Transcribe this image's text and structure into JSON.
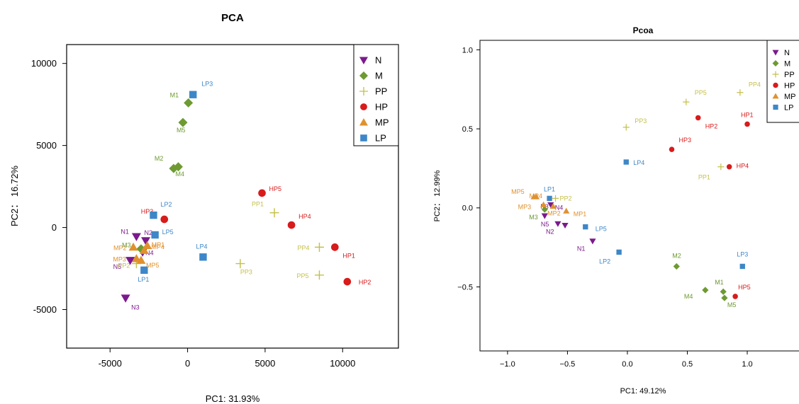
{
  "colors": {
    "N": "#7B1A8C",
    "M": "#6E9A32",
    "PP": "#C4C04A",
    "HP": "#D81B1B",
    "MP": "#E0912E",
    "LP": "#3D87C8"
  },
  "chart_data": [
    {
      "type": "scatter",
      "title": "PCA",
      "xlabel": "PC1: 31.93%",
      "ylabel": "PC2： 16.72%",
      "xlim": [
        -7800,
        13600
      ],
      "ylim": [
        -7350,
        11150
      ],
      "xticks": [
        -5000,
        0,
        5000,
        10000
      ],
      "yticks": [
        -5000,
        0,
        5000,
        10000
      ],
      "xticklabels": [
        "-5000",
        "0",
        "5000",
        "10000"
      ],
      "yticklabels": [
        "-5000",
        "0",
        "5000",
        "10000"
      ],
      "grid": false,
      "legend": {
        "placement": "top-right",
        "entries": [
          "N",
          "M",
          "PP",
          "HP",
          "MP",
          "LP"
        ]
      },
      "series": [
        {
          "name": "N",
          "marker": "triangle-down",
          "points": [
            {
              "label": "N1",
              "x": -3300,
              "y": -550
            },
            {
              "label": "N2",
              "x": -2700,
              "y": -800
            },
            {
              "label": "N3",
              "x": -4000,
              "y": -4300
            },
            {
              "label": "N4",
              "x": -2900,
              "y": -1500
            },
            {
              "label": "N5",
              "x": -3700,
              "y": -2000
            }
          ]
        },
        {
          "name": "M",
          "marker": "diamond",
          "points": [
            {
              "label": "M1",
              "x": 50,
              "y": 7600
            },
            {
              "label": "M2",
              "x": -900,
              "y": 3600
            },
            {
              "label": "M3",
              "x": -3000,
              "y": -1300
            },
            {
              "label": "M4",
              "x": -600,
              "y": 3700
            },
            {
              "label": "M5",
              "x": -300,
              "y": 6400
            }
          ]
        },
        {
          "name": "PP",
          "marker": "plus",
          "points": [
            {
              "label": "PP1",
              "x": 5600,
              "y": 900
            },
            {
              "label": "PP2",
              "x": -3300,
              "y": -2200
            },
            {
              "label": "PP3",
              "x": 3400,
              "y": -2200
            },
            {
              "label": "PP4",
              "x": 8500,
              "y": -1200
            },
            {
              "label": "PP5",
              "x": 8500,
              "y": -2900
            }
          ]
        },
        {
          "name": "HP",
          "marker": "circle",
          "points": [
            {
              "label": "HP1",
              "x": 9500,
              "y": -1200
            },
            {
              "label": "HP2",
              "x": 10300,
              "y": -3300
            },
            {
              "label": "HP3",
              "x": -1500,
              "y": 500
            },
            {
              "label": "HP4",
              "x": 6700,
              "y": 150
            },
            {
              "label": "HP5",
              "x": 4800,
              "y": 2100
            }
          ]
        },
        {
          "name": "MP",
          "marker": "triangle-up",
          "points": [
            {
              "label": "MP1",
              "x": -2600,
              "y": -1100
            },
            {
              "label": "MP2",
              "x": -3500,
              "y": -1200
            },
            {
              "label": "MP3",
              "x": -3300,
              "y": -1900
            },
            {
              "label": "MP4",
              "x": -2800,
              "y": -1400
            },
            {
              "label": "MP5",
              "x": -3000,
              "y": -2000
            }
          ]
        },
        {
          "name": "LP",
          "marker": "square",
          "points": [
            {
              "label": "LP1",
              "x": -2800,
              "y": -2600
            },
            {
              "label": "LP2",
              "x": -2200,
              "y": 750
            },
            {
              "label": "LP3",
              "x": 350,
              "y": 8100
            },
            {
              "label": "LP4",
              "x": 1000,
              "y": -1800
            },
            {
              "label": "LP5",
              "x": -2100,
              "y": -450
            }
          ]
        }
      ]
    },
    {
      "type": "scatter",
      "title": "Pcoa",
      "xlabel": "PC1: 49.12%",
      "ylabel": "PC2： 12.99%",
      "xlim": [
        -1.23,
        1.55
      ],
      "ylim": [
        -0.905,
        1.06
      ],
      "xticks": [
        -1.0,
        -0.5,
        0.0,
        0.5,
        1.0
      ],
      "yticks": [
        -0.5,
        0.0,
        0.5,
        1.0
      ],
      "xticklabels": [
        "−1.0",
        "−0.5",
        "0.0",
        "0.5",
        "1.0"
      ],
      "yticklabels": [
        "−0.5",
        "0.0",
        "0.5",
        "1.0"
      ],
      "grid": false,
      "legend": {
        "placement": "top-right",
        "entries": [
          "N",
          "M",
          "PP",
          "HP",
          "MP",
          "LP"
        ]
      },
      "series": [
        {
          "name": "N",
          "marker": "triangle-down",
          "points": [
            {
              "label": "N1",
              "x": -0.29,
              "y": -0.21
            },
            {
              "label": "N2",
              "x": -0.52,
              "y": -0.11
            },
            {
              "label": "N3",
              "x": -0.69,
              "y": -0.05
            },
            {
              "label": "N4",
              "x": -0.64,
              "y": 0.02
            },
            {
              "label": "N5",
              "x": -0.58,
              "y": -0.1
            }
          ]
        },
        {
          "name": "M",
          "marker": "diamond",
          "points": [
            {
              "label": "M1",
              "x": 0.8,
              "y": -0.53
            },
            {
              "label": "M2",
              "x": 0.41,
              "y": -0.37
            },
            {
              "label": "M3",
              "x": -0.69,
              "y": -0.01
            },
            {
              "label": "M4",
              "x": 0.65,
              "y": -0.52
            },
            {
              "label": "M5",
              "x": 0.81,
              "y": -0.57
            }
          ]
        },
        {
          "name": "PP",
          "marker": "plus",
          "points": [
            {
              "label": "PP1",
              "x": 0.78,
              "y": 0.26
            },
            {
              "label": "PP2",
              "x": -0.6,
              "y": 0.06
            },
            {
              "label": "PP3",
              "x": -0.01,
              "y": 0.51
            },
            {
              "label": "PP4",
              "x": 0.94,
              "y": 0.73
            },
            {
              "label": "PP5",
              "x": 0.49,
              "y": 0.67
            }
          ]
        },
        {
          "name": "HP",
          "marker": "circle",
          "points": [
            {
              "label": "HP1",
              "x": 1.0,
              "y": 0.53
            },
            {
              "label": "HP2",
              "x": 0.59,
              "y": 0.57
            },
            {
              "label": "HP3",
              "x": 0.37,
              "y": 0.37
            },
            {
              "label": "HP4",
              "x": 0.85,
              "y": 0.26
            },
            {
              "label": "HP5",
              "x": 0.9,
              "y": -0.56
            }
          ]
        },
        {
          "name": "MP",
          "marker": "triangle-up",
          "points": [
            {
              "label": "MP1",
              "x": -0.51,
              "y": -0.02
            },
            {
              "label": "MP2",
              "x": -0.62,
              "y": 0.01
            },
            {
              "label": "MP3",
              "x": -0.7,
              "y": 0.02
            },
            {
              "label": "MP4",
              "x": -0.76,
              "y": 0.07
            },
            {
              "label": "MP5",
              "x": -0.78,
              "y": 0.07
            }
          ]
        },
        {
          "name": "LP",
          "marker": "square",
          "points": [
            {
              "label": "LP1",
              "x": -0.65,
              "y": 0.06
            },
            {
              "label": "LP2",
              "x": -0.07,
              "y": -0.28
            },
            {
              "label": "LP3",
              "x": 0.96,
              "y": -0.37
            },
            {
              "label": "LP4",
              "x": -0.01,
              "y": 0.29
            },
            {
              "label": "LP5",
              "x": -0.35,
              "y": -0.12
            }
          ]
        }
      ]
    }
  ]
}
